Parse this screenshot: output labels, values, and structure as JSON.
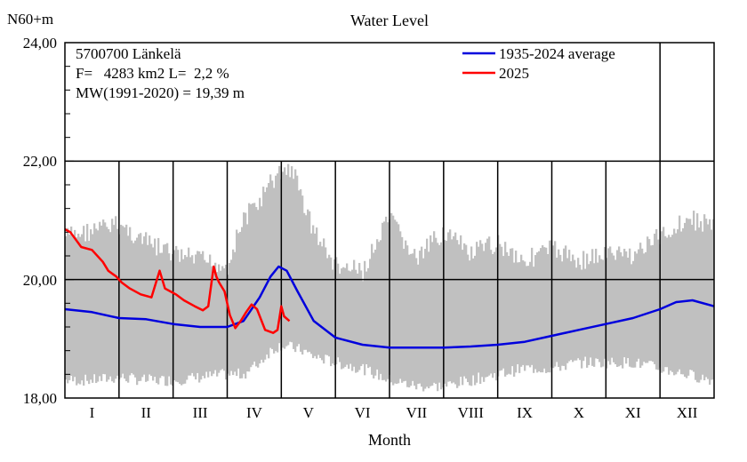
{
  "chart_data": {
    "type": "area",
    "title": "Water Level",
    "ylabel": "N60+m",
    "xlabel": "Month",
    "ylim": [
      18,
      24
    ],
    "xlim": [
      0,
      12
    ],
    "y_ticks": [
      "18,00",
      "20,00",
      "22,00",
      "24,00"
    ],
    "x_tick_labels": [
      "I",
      "II",
      "III",
      "IV",
      "V",
      "VI",
      "VII",
      "VIII",
      "IX",
      "X",
      "XI",
      "XII"
    ],
    "grid": true,
    "legend_position": "top-right",
    "info": {
      "station": "5700700 Länkelä",
      "catchment": "F=   4283 km2 L=  2,2 %",
      "mean": "MW(1991-2020) = 19,39 m"
    },
    "series": [
      {
        "name": "1935-2024 average",
        "color": "#0000dd",
        "x": [
          0,
          0.5,
          1.0,
          1.5,
          2.0,
          2.5,
          3.0,
          3.3,
          3.6,
          3.8,
          3.95,
          4.1,
          4.3,
          4.6,
          5.0,
          5.5,
          6.0,
          6.5,
          7.0,
          7.5,
          8.0,
          8.5,
          9.0,
          9.5,
          10.0,
          10.5,
          11.0,
          11.3,
          11.6,
          12.0
        ],
        "values": [
          19.5,
          19.45,
          19.35,
          19.33,
          19.25,
          19.2,
          19.2,
          19.3,
          19.7,
          20.05,
          20.22,
          20.15,
          19.8,
          19.3,
          19.02,
          18.9,
          18.85,
          18.85,
          18.85,
          18.87,
          18.9,
          18.95,
          19.05,
          19.15,
          19.25,
          19.35,
          19.5,
          19.62,
          19.65,
          19.55
        ]
      },
      {
        "name": "2025",
        "color": "#ff0000",
        "x": [
          0,
          0.1,
          0.3,
          0.5,
          0.7,
          0.8,
          0.95,
          1.05,
          1.2,
          1.4,
          1.6,
          1.75,
          1.85,
          1.95,
          2.05,
          2.2,
          2.4,
          2.55,
          2.65,
          2.75,
          2.8,
          2.85,
          2.95,
          3.05,
          3.15,
          3.25,
          3.35,
          3.45,
          3.55,
          3.7,
          3.85,
          3.93,
          4.0,
          4.05,
          4.15
        ],
        "values": [
          20.85,
          20.8,
          20.55,
          20.5,
          20.3,
          20.15,
          20.05,
          19.95,
          19.85,
          19.75,
          19.7,
          20.15,
          19.85,
          19.8,
          19.75,
          19.65,
          19.55,
          19.48,
          19.55,
          20.22,
          20.05,
          19.95,
          19.8,
          19.4,
          19.18,
          19.3,
          19.45,
          19.58,
          19.5,
          19.15,
          19.1,
          19.15,
          19.55,
          19.38,
          19.3
        ]
      }
    ],
    "envelope": {
      "color": "#c0c0c0",
      "x": [
        0,
        0.5,
        1.0,
        1.5,
        2.0,
        2.5,
        3.0,
        3.3,
        3.6,
        3.8,
        4.0,
        4.2,
        4.4,
        4.6,
        5.0,
        5.5,
        6.0,
        6.5,
        7.0,
        7.5,
        8.0,
        8.5,
        9.0,
        9.5,
        10.0,
        10.5,
        11.0,
        11.5,
        12.0
      ],
      "max": [
        20.9,
        21.0,
        21.1,
        20.8,
        20.6,
        20.5,
        20.4,
        21.2,
        21.5,
        21.8,
        22.0,
        22.05,
        21.5,
        21.0,
        20.4,
        20.3,
        21.2,
        20.5,
        21.0,
        20.6,
        20.8,
        20.5,
        20.7,
        20.5,
        20.6,
        20.6,
        20.9,
        21.2,
        21.1
      ],
      "min": [
        18.2,
        18.2,
        18.25,
        18.2,
        18.2,
        18.25,
        18.3,
        18.3,
        18.5,
        18.7,
        18.8,
        18.75,
        18.7,
        18.6,
        18.5,
        18.4,
        18.2,
        18.1,
        18.1,
        18.2,
        18.3,
        18.4,
        18.4,
        18.5,
        18.5,
        18.5,
        18.4,
        18.3,
        18.2
      ]
    }
  }
}
